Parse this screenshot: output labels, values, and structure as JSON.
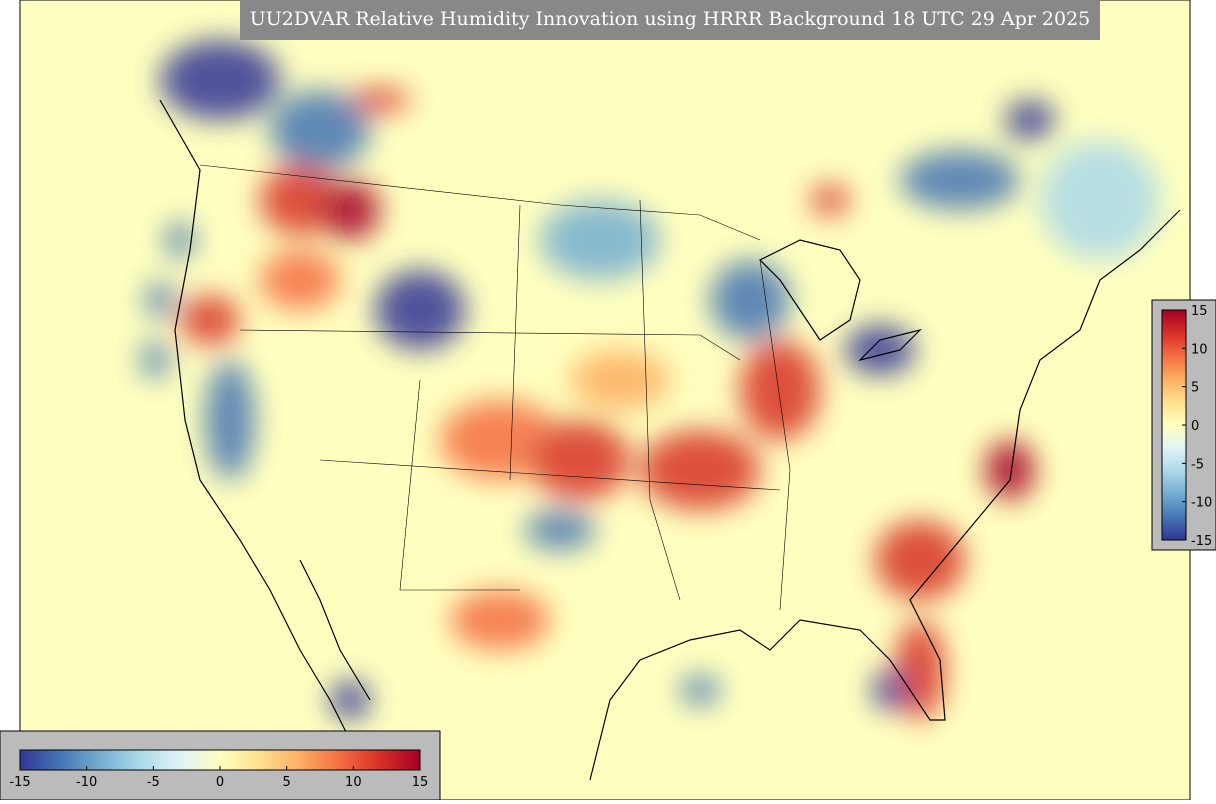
{
  "title": "UU2DVAR Relative Humidity Innovation using HRRR Background 18 UTC 29 Apr 2025",
  "colorbar": {
    "lim": [
      -15,
      15
    ],
    "ticks": [
      -15,
      -10,
      -5,
      0,
      5,
      10,
      15
    ],
    "colors": [
      "#313695",
      "#4575b4",
      "#74add1",
      "#abd9e9",
      "#e0f3f8",
      "#ffffbf",
      "#fee090",
      "#fdae61",
      "#f46d43",
      "#d73027",
      "#a50026"
    ]
  }
}
